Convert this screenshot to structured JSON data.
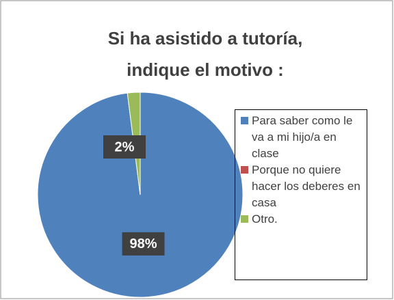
{
  "chart_data": {
    "type": "pie",
    "title": [
      "Si ha asistido a tutoría,",
      "indique el motivo :"
    ],
    "categories": [
      "Para saber como le va a mi hijo/a en clase",
      "Porque no quiere hacer los deberes en casa",
      "Otro."
    ],
    "values": [
      98,
      0,
      2
    ],
    "value_labels": [
      "98%",
      null,
      "2%"
    ],
    "colors": [
      "#4f81bd",
      "#c0504d",
      "#9bbb59"
    ],
    "legend": "right"
  }
}
